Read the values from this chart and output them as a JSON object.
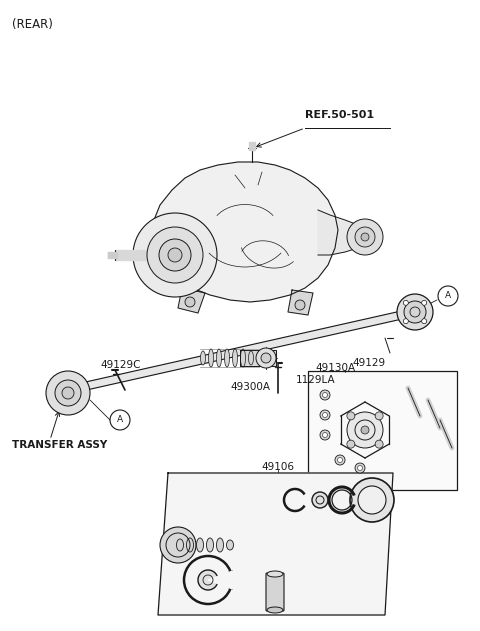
{
  "bg_color": "#ffffff",
  "line_color": "#1a1a1a",
  "text_color": "#1a1a1a",
  "fig_width": 4.8,
  "fig_height": 6.31,
  "dpi": 100,
  "rear_label": "(REAR)",
  "ref_label": "REF.50-501",
  "label_49129": "49129",
  "label_49129C": "49129C",
  "label_49300A": "49300A",
  "label_1129LA": "1129LA",
  "label_49130A": "49130A",
  "label_49106": "49106",
  "label_transfer": "TRANSFER ASSY"
}
